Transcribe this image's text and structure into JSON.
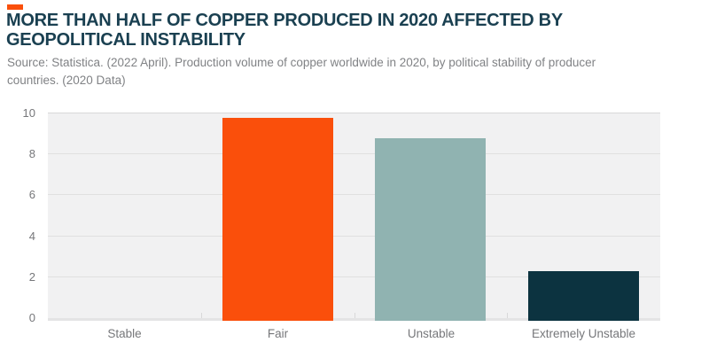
{
  "header": {
    "title": "MORE THAN HALF OF COPPER PRODUCED IN 2020 AFFECTED BY GEOPOLITICAL INSTABILITY",
    "source": "Source: Statistica. (2022 April). Production volume of copper worldwide in 2020, by political stability of producer countries. (2020 Data)",
    "accent_color": "#FA4F0B",
    "title_color": "#1A4051",
    "source_color": "#808285"
  },
  "chart_data": {
    "type": "bar",
    "title": "MORE THAN HALF OF COPPER PRODUCED IN 2020 AFFECTED BY GEOPOLITICAL INSTABILITY",
    "categories": [
      "Stable",
      "Fair",
      "Unstable",
      "Extremely Unstable"
    ],
    "values": [
      0,
      9.8,
      8.8,
      2.3
    ],
    "bar_colors": [
      "#FA4F0B",
      "#FA4F0B",
      "#90B3B1",
      "#0C3340"
    ],
    "xlabel": "",
    "ylabel": "",
    "ylim": [
      0,
      10
    ],
    "yticks": [
      0,
      2,
      4,
      6,
      8,
      10
    ],
    "grid": true,
    "legend": false,
    "plot_bg": "#F1F1F2",
    "axis_text_color": "#76777A"
  }
}
